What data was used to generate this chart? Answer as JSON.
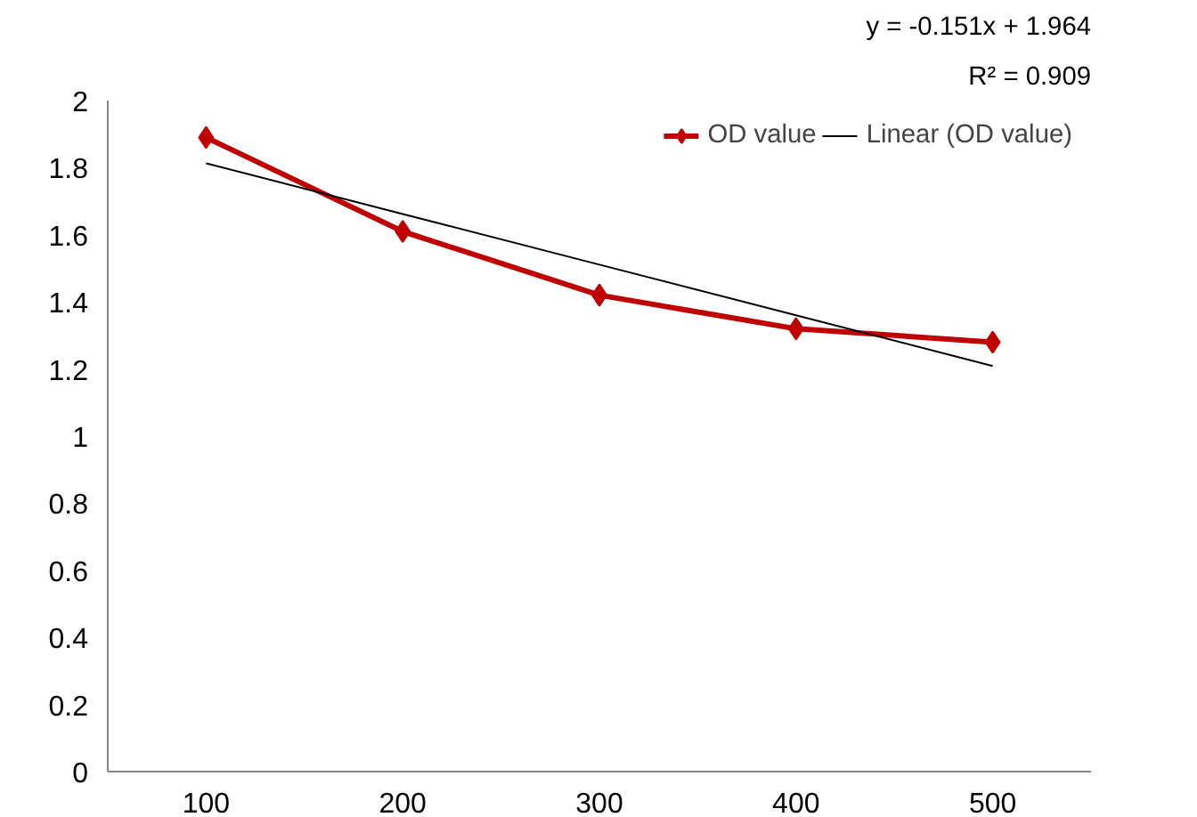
{
  "chart_data": {
    "type": "line",
    "categories": [
      "100",
      "200",
      "300",
      "400",
      "500"
    ],
    "series": [
      {
        "name": "OD value",
        "color": "#c00000",
        "values": [
          1.89,
          1.61,
          1.42,
          1.32,
          1.28
        ],
        "marker": "diamond",
        "line_style": "solid"
      },
      {
        "name": "Linear (OD value)",
        "color": "#000000",
        "values": [
          1.813,
          1.662,
          1.511,
          1.36,
          1.209
        ],
        "marker": "none",
        "line_style": "solid"
      }
    ],
    "ylim": [
      0,
      2
    ],
    "yticks": [
      0,
      0.2,
      0.4,
      0.6,
      0.8,
      1,
      1.2,
      1.4,
      1.6,
      1.8,
      2
    ],
    "grid": false,
    "legend": "top right",
    "annotations": [
      "y = -0.151x + 1.964",
      "R² = 0.909"
    ]
  }
}
